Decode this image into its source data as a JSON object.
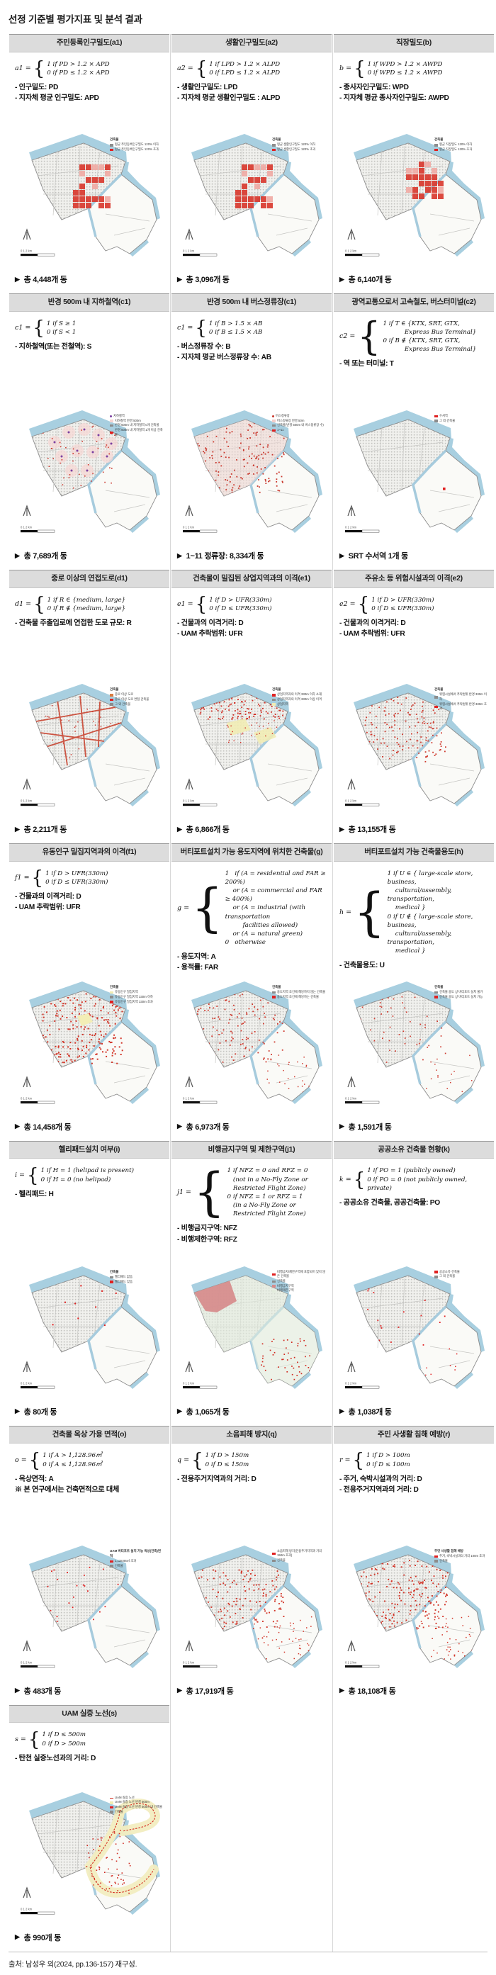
{
  "page": {
    "title": "선정 기준별 평가지표 및 분석 결과",
    "source": "출처: 남성우 외(2024, pp.136-157) 재구성.",
    "result_marker": "▶"
  },
  "map_common": {
    "scale_labels": "0    1    2 km"
  },
  "rows": [
    [
      {
        "title": "주민등록인구밀도(a1)",
        "lhs": "a1 =",
        "lines": [
          "1 if PD > 1.2 × APD",
          "0 if PD ≤ 1.2 × APD"
        ],
        "notes": [
          "- 인구밀도: PD",
          "- 지자체 평균 인구밀도: APD"
        ],
        "legend": {
          "title": "건축물",
          "items": [
            {
              "color": "#8c8c8c",
              "label": "평균 주민등록인구밀도 120% 이하"
            },
            {
              "color": "#e02121",
              "label": "평균 주민등록인구밀도 120% 초과"
            }
          ]
        },
        "variant": "cellsA",
        "result": "총 4,448개 동"
      },
      {
        "title": "생활인구밀도(a2)",
        "lhs": "a2 =",
        "lines": [
          "1 if LPD > 1.2 × ALPD",
          "0 if LPD ≤ 1.2 × ALPD"
        ],
        "notes": [
          "- 생활인구밀도: LPD",
          "- 지자체 평균 생활인구밀도 : ALPD"
        ],
        "legend": {
          "title": "건축물",
          "items": [
            {
              "color": "#8c8c8c",
              "label": "평균 생활인구밀도 120% 이하"
            },
            {
              "color": "#e02121",
              "label": "평균 생활인구밀도 120% 초과"
            }
          ]
        },
        "variant": "cellsA",
        "result": "총 3,096개 동"
      },
      {
        "title": "직장밀도(b)",
        "lhs": "b =",
        "lines": [
          "1 if WPD > 1.2 × AWPD",
          "0 if WPD ≤ 1.2 × AWPD"
        ],
        "notes": [
          "- 종사자인구밀도: WPD",
          "- 지자체 평균 종사자인구밀도: AWPD"
        ],
        "legend": {
          "title": "건축물",
          "items": [
            {
              "color": "#8c8c8c",
              "label": "평균 직장밀도 120% 이하"
            },
            {
              "color": "#e02121",
              "label": "평균 직장밀도 120% 초과"
            }
          ]
        },
        "variant": "cellsB",
        "result": "총 6,140개 동"
      }
    ],
    [
      {
        "title": "반경 500m 내 지하철역(c1)",
        "lhs": "c1 =",
        "lines": [
          "1 if S ≥ 1",
          "0 if S < 1"
        ],
        "notes": [
          "- 지하철역(또는 전철역): S"
        ],
        "legend": {
          "title": "",
          "items": [
            {
              "color": "#7b3fa0",
              "shape": "dot",
              "label": "지하철역"
            },
            {
              "color": "#f6d5d2",
              "label": "지하철역 반경 500m"
            },
            {
              "color": "#8c8c8c",
              "label": "반경 500m 내 지하철역 0개 건축물"
            },
            {
              "color": "#e02121",
              "label": "반경 500m 내 지하철역 1개 이상 건축물"
            }
          ]
        },
        "variant": "subway",
        "result": "총 7,689개 동"
      },
      {
        "title": "반경 500m 내 버스정류장(c1)",
        "lhs": "c1 =",
        "lines": [
          "1 if B > 1.5 × AB",
          "0 if B ≤ 1.5 × AB"
        ],
        "notes": [
          "- 버스정류장 수: B",
          "- 지자체 평균 버스정류장 수: AB"
        ],
        "legend": {
          "title": "",
          "items": [
            {
              "color": "#c9362b",
              "shape": "dot",
              "label": "버스정류장"
            },
            {
              "color": "#f3cdc9",
              "label": "버스정류장 반경 50m"
            },
            {
              "color": "#8c8c8c",
              "label": "건축물(반경 500m 내 버스정류장 수)"
            },
            {
              "color": "#e02121",
              "label": "1~11"
            }
          ]
        },
        "variant": "bus",
        "result": "1~11 정류장: 8,334개 동"
      },
      {
        "title": "광역교통으로서 고속철도, 버스터미널(c2)",
        "lhs": "c2 =",
        "lines": [
          "1 if T ∈ {KTX, SRT, GTX,\n           Express Bus Terminal}",
          "0 if B ∉ {KTX, SRT, GTX,\n           Express Bus Terminal}"
        ],
        "notes": [
          "- 역 또는 터미널: T"
        ],
        "legend": {
          "title": "",
          "items": [
            {
              "color": "#e02121",
              "label": "수서역"
            },
            {
              "color": "#8c8c8c",
              "label": "그 외 건축물"
            }
          ]
        },
        "variant": "suseo",
        "result": "SRT 수서역 1개 동"
      }
    ],
    [
      {
        "title": "중로 이상의 연접도로(d1)",
        "lhs": "d1 =",
        "lines": [
          "1 if R ∈ {medium, large}",
          "0 if R ∉ {medium, large}"
        ],
        "notes": [
          "- 건축물 주출입로에 연접한 도로 규모: R"
        ],
        "legend": {
          "title": "건축물",
          "items": [
            {
              "color": "#d97b3f",
              "label": "중로 이상 도로"
            },
            {
              "color": "#e02121",
              "label": "중로 이상 도로 연접 건축물"
            },
            {
              "color": "#8c8c8c",
              "label": "그 외 건축물"
            }
          ]
        },
        "variant": "roads",
        "result": "총 2,211개 동"
      },
      {
        "title": "건축물이 밀집된 상업지역과의 이격(e1)",
        "lhs": "e1 =",
        "lines": [
          "1 if D > UFR(330m)",
          "0 if D ≤ UFR(330m)"
        ],
        "notes": [
          "- 건물과의 이격거리: D",
          "- UAM 추락범위: UFR"
        ],
        "legend": {
          "title": "건축물",
          "items": [
            {
              "color": "#e02121",
              "label": "상업지역과의 이격 330m 이하 소재"
            },
            {
              "color": "#8c8c8c",
              "label": "상업지역과의 이격 330m 이상 이격"
            },
            {
              "color": "#f1ecb4",
              "label": "상업지역"
            }
          ]
        },
        "variant": "stripTop",
        "result": "총 6,866개 동"
      },
      {
        "title": "주유소 등 위험시설과의 이격(e2)",
        "lhs": "e2 =",
        "lines": [
          "1 if D > UFR(330m)",
          "0 if D ≤ UFR(330m)"
        ],
        "notes": [
          "- 건물과의 이격거리: D",
          "- UAM 추락범위: UFR"
        ],
        "legend": {
          "title": "건축물",
          "items": [
            {
              "color": "#8c8c8c",
              "label": "위험시설에서 추락범위 반경 330m 이하"
            },
            {
              "color": "#e02121",
              "label": "위험시설에서 추락범위 반경 330m 초과"
            }
          ]
        },
        "variant": "scatterWide",
        "result": "총 13,155개 동"
      }
    ],
    [
      {
        "title": "유동인구 밀집지역과의 이격(f1)",
        "lhs": "f1 =",
        "lines": [
          "1 if D > UFR(330m)",
          "0 if D ≤ UFR(330m)"
        ],
        "notes": [
          "- 건물과의 이격거리: D",
          "- UAM 추락범위: UFR"
        ],
        "legend": {
          "title": "건축물",
          "items": [
            {
              "color": "#f1ecb4",
              "label": "유동인구 밀집지역"
            },
            {
              "color": "#8c8c8c",
              "label": "유동인구 밀집지역 330m 이하"
            },
            {
              "color": "#e02121",
              "label": "유동인구 밀집지역 330m 초과"
            }
          ]
        },
        "variant": "denseYellow",
        "result": "총 14,458개 동"
      },
      {
        "title": "버티포트설치 가능 용도지역에 위치한 건축물(g)",
        "lhs": "g =",
        "lines": [
          "1   if (A = residential and FAR ≥ 200%)",
          "    or (A = commercial and FAR ≥ 400%)",
          "    or (A = industrial (with transportation",
          "         facilities allowed)",
          "    or (A = natural green)",
          "0   otherwise"
        ],
        "notes": [
          "- 용도지역: A",
          "- 용적률: FAR"
        ],
        "legend": {
          "title": "건축물",
          "items": [
            {
              "color": "#8c8c8c",
              "label": "용도지역 조건에 해당하지 않는 건축물"
            },
            {
              "color": "#e02121",
              "label": "용도지역 조건에 해당하는 건축물"
            }
          ]
        },
        "variant": "scatterG",
        "result": "총 6,973개 동"
      },
      {
        "title": "버티포트설치 가능 건축물용도(h)",
        "lhs": "h =",
        "lines": [
          "1 if U ∈ { large-scale store, business,\n    cultural/assembly, transportation,\n    medical }",
          "0 if U ∉ { large-scale store, business,\n    cultural/assembly, transportation,\n    medical }"
        ],
        "notes": [
          "- 건축물용도: U"
        ],
        "legend": {
          "title": "건축물",
          "items": [
            {
              "color": "#8c8c8c",
              "label": "건축물 용도 상 버티포트 설치 불가"
            },
            {
              "color": "#e02121",
              "label": "건축물 용도 상 버티포트 설치 가능"
            }
          ]
        },
        "variant": "scatterH",
        "result": "총 1,591개 동"
      }
    ],
    [
      {
        "title": "헬리패드설치 여부(i)",
        "lhs": "i =",
        "lines": [
          "1 if H = 1 (helipad is present)",
          "0 if H = 0 (no helipad)"
        ],
        "notes": [
          "- 헬리패드: H"
        ],
        "legend": {
          "title": "건축물",
          "items": [
            {
              "color": "#8c8c8c",
              "label": "헬리패드 없음"
            },
            {
              "color": "#e02121",
              "label": "헬리패드 있음"
            }
          ]
        },
        "variant": "verySparse",
        "result": "총 80개 동"
      },
      {
        "title": "비행금지구역 및 제한구역(j1)",
        "lhs": "j1 =",
        "lines": [
          "1 if NFZ = 0 and RFZ = 0",
          "   (not in a No-Fly Zone or",
          "   Restricted Flight Zone)",
          "0 if NFZ = 1 or RFZ = 1",
          "   (in a No-Fly Zone or",
          "   Restricted Flight Zone)"
        ],
        "notes": [
          "- 비행금지구역: NFZ",
          "- 비행제한구역: RFZ"
        ],
        "legend": {
          "title": "",
          "items": [
            {
              "color": "#e02121",
              "label": "비행금지/제한구역에 포함되어 있지 않은 건축물"
            },
            {
              "color": "#8c8c8c",
              "label": "건축물"
            },
            {
              "color": "#d68b8b",
              "label": "비행금지구역"
            },
            {
              "color": "#e3ecdd",
              "label": "비행제한구역"
            }
          ]
        },
        "variant": "zones",
        "result": "총 1,065개 동"
      },
      {
        "title": "공공소유 건축물 현황(k)",
        "lhs": "k =",
        "lines": [
          "1 if PO = 1 (publicly owned)",
          "0 if PO = 0 (not publicly owned, private)"
        ],
        "notes": [
          "- 공공소유 건축물, 공공건축물: PO"
        ],
        "legend": {
          "title": "",
          "items": [
            {
              "color": "#e02121",
              "label": "공공소유 건축물"
            },
            {
              "color": "#8c8c8c",
              "label": "그 외 건축물"
            }
          ]
        },
        "variant": "sparseK",
        "result": "총 1,038개 동"
      }
    ],
    [
      {
        "title": "건축물 옥상 가용 면적(o)",
        "lhs": "o =",
        "lines": [
          "1 if A > 1,128.96㎡",
          "0 if A ≤ 1,128.96㎡"
        ],
        "notes": [
          "- 옥상면적: A",
          "※ 본 연구에서는 건축면적으로 대체"
        ],
        "legend": {
          "title": "UAM 버티포트 설치 가능 옥상(건축)면적",
          "items": [
            {
              "color": "#e02121",
              "label": "1,128.96㎡ 초과"
            },
            {
              "color": "#8c8c8c",
              "label": "건축물"
            }
          ]
        },
        "variant": "sparseO",
        "result": "총 483개 동"
      },
      {
        "title": "소음피해 방지(q)",
        "lhs": "q =",
        "lines": [
          "1 if D > 150m",
          "0 if D ≤ 150m"
        ],
        "notes": [
          "- 전용주거지역과의 거리: D"
        ],
        "legend": {
          "title": "",
          "items": [
            {
              "color": "#e02121",
              "label": "소음피해 방지(전용주거지역과 거리 150m 초과)"
            },
            {
              "color": "#8c8c8c",
              "label": "건축물"
            }
          ]
        },
        "variant": "denseQ",
        "result": "총 17,919개 동"
      },
      {
        "title": "주민 사생활 침해 예방(r)",
        "lhs": "r =",
        "lines": [
          "1 if D > 100m",
          "0 if D ≤ 100m"
        ],
        "notes": [
          "- 주거, 숙박시설과의 거리: D",
          "- 전용주거지역과의 거리: D"
        ],
        "legend": {
          "title": "주민 사생활 침해 예방",
          "items": [
            {
              "color": "#e02121",
              "label": "주거, 숙박시설과의 거리 100m 초과"
            },
            {
              "color": "#8c8c8c",
              "label": "건축물"
            }
          ]
        },
        "variant": "denseR",
        "result": "총 18,108개 동"
      }
    ],
    [
      {
        "title": "UAM 실증 노선(s)",
        "lhs": "s =",
        "lines": [
          "1 if D ≤ 500m",
          "0 if D > 500m"
        ],
        "notes": [
          "- 탄천 실증노선과의 거리: D"
        ],
        "legend": {
          "title": "",
          "items": [
            {
              "color": "#d42a1e",
              "shape": "line",
              "label": "UAM 실증 노선"
            },
            {
              "color": "#f1ecb4",
              "label": "UAM 실증 노선 반경 500m"
            },
            {
              "color": "#e02121",
              "label": "UAM 실증 노선 반경 500m 내 건축물"
            },
            {
              "color": "#8c8c8c",
              "label": "건축물"
            }
          ]
        },
        "variant": "route",
        "result": "총 990개 동"
      },
      null,
      null
    ]
  ]
}
